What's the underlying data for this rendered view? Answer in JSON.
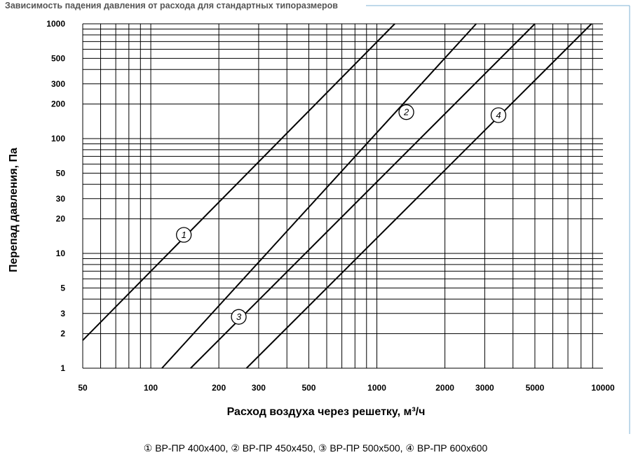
{
  "chart_data": {
    "type": "line",
    "title": "Зависимость падения давления от расхода для стандартных типоразмеров",
    "xlabel": "Расход воздуха через решетку, м³/ч",
    "ylabel": "Перепад давления, Па",
    "xscale": "log",
    "yscale": "log",
    "xlim": [
      50,
      10000
    ],
    "ylim": [
      1,
      1000
    ],
    "x_ticks": [
      "50",
      "100",
      "200",
      "300",
      "500",
      "1000",
      "2000",
      "3000",
      "5000",
      "10000"
    ],
    "x_tick_values": [
      50,
      100,
      200,
      300,
      500,
      1000,
      2000,
      3000,
      5000,
      10000
    ],
    "y_ticks": [
      "1",
      "2",
      "3",
      "5",
      "10",
      "20",
      "30",
      "50",
      "100",
      "200",
      "300",
      "500",
      "1000"
    ],
    "y_tick_values": [
      1,
      2,
      3,
      5,
      10,
      20,
      30,
      50,
      100,
      200,
      300,
      500,
      1000
    ],
    "grid": true,
    "legend_position": "bottom",
    "series": [
      {
        "name": "ВР-ПР 400х400",
        "marker": "1",
        "x": [
          50,
          1200
        ],
        "y": [
          1.75,
          1000
        ],
        "label_at": [
          140,
          14.5
        ]
      },
      {
        "name": "ВР-ПР 450х450",
        "marker": "2",
        "x": [
          112,
          2750
        ],
        "y": [
          1,
          1000
        ],
        "label_at": [
          1350,
          170
        ]
      },
      {
        "name": "ВР-ПР 500х500",
        "marker": "3",
        "x": [
          150,
          5000
        ],
        "y": [
          1,
          1000
        ],
        "label_at": [
          245,
          2.8
        ]
      },
      {
        "name": "ВР-ПР 600х600",
        "marker": "4",
        "x": [
          265,
          8900
        ],
        "y": [
          1,
          1000
        ],
        "label_at": [
          3450,
          160
        ]
      }
    ]
  },
  "legend": {
    "text": "① ВР-ПР 400х400, ② ВР-ПР 450х450, ③ ВР-ПР 500х500, ④ ВР-ПР 600х600"
  }
}
